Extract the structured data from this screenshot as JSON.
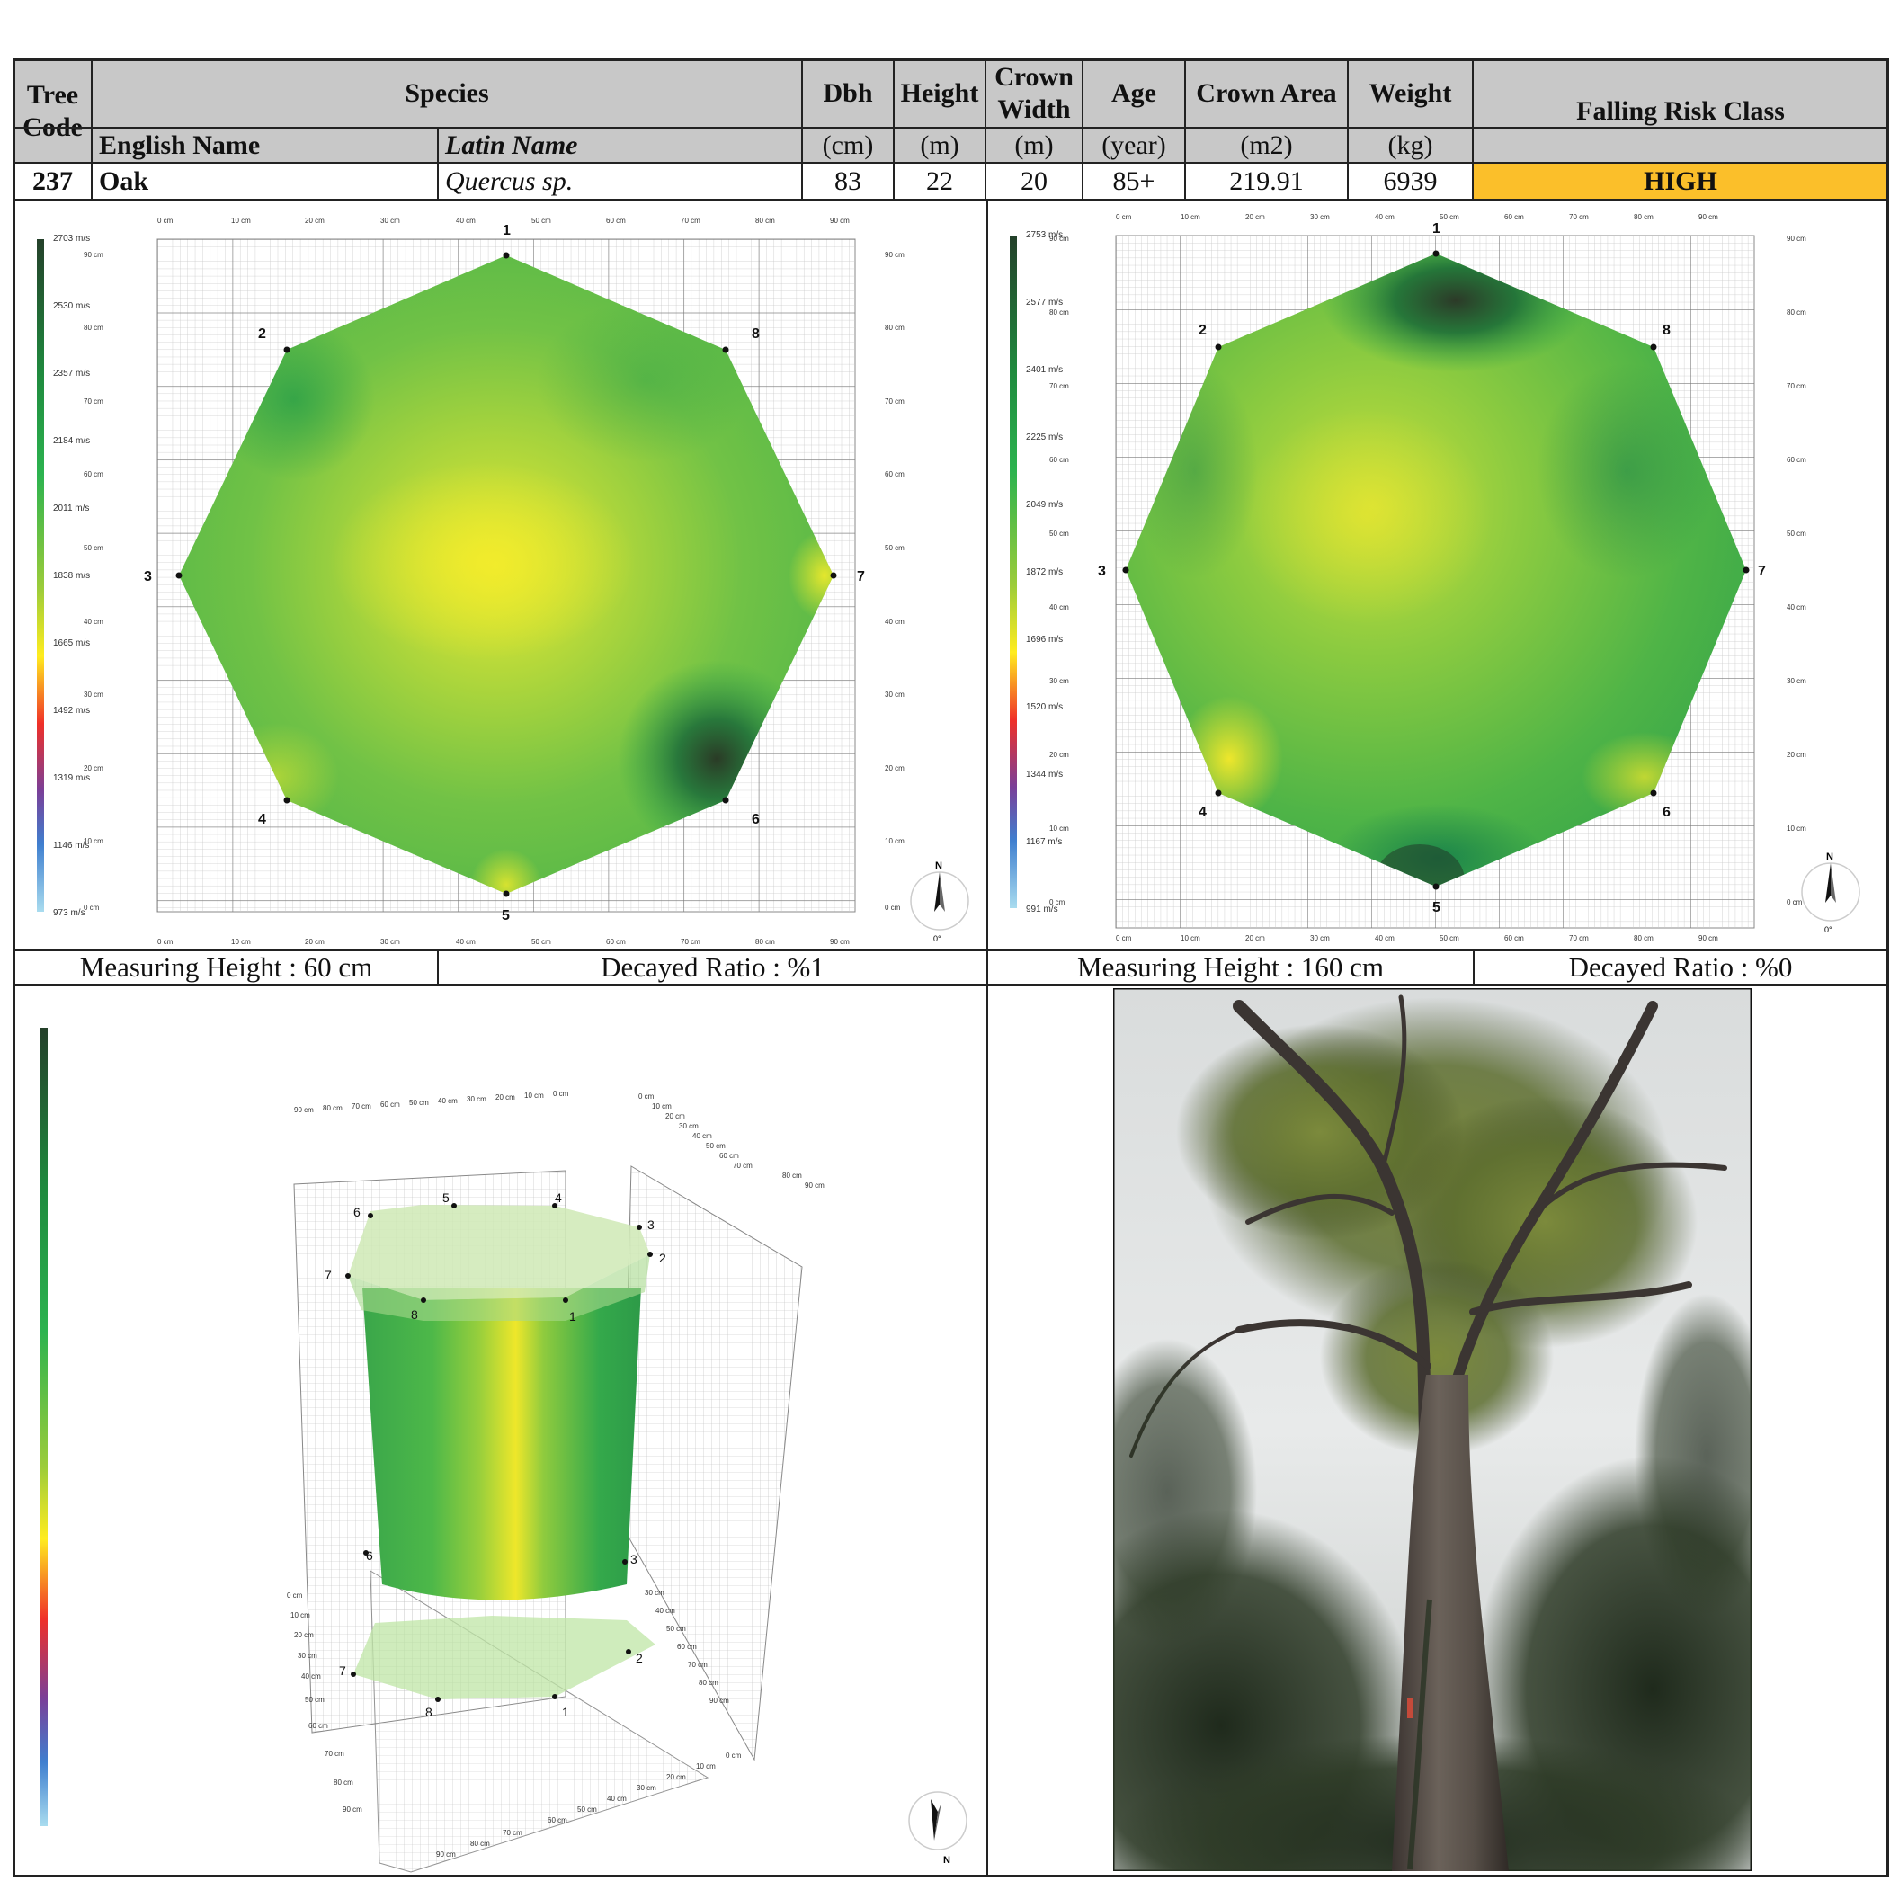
{
  "table": {
    "headers": {
      "tree_code": "Tree Code",
      "species": "Species",
      "english_name": "English Name",
      "latin_name": "Latin Name",
      "dbh": "Dbh",
      "height": "Height",
      "crown_width": "Crown Width",
      "age": "Age",
      "crown_area": "Crown Area",
      "weight": "Weight",
      "falling_risk": "Falling Risk Class"
    },
    "units": {
      "dbh": "(cm)",
      "height": "(m)",
      "crown_width": "(m)",
      "age": "(year)",
      "crown_area": "(m2)",
      "weight": "(kg)"
    },
    "row": {
      "tree_code": "237",
      "english_name": "Oak",
      "latin_name": "Quercus sp.",
      "dbh": "83",
      "height": "22",
      "crown_width": "20",
      "age": "85+",
      "crown_area": "219.91",
      "weight": "6939",
      "falling_risk": "HIGH"
    },
    "colors": {
      "header_bg": "#c8c8c8",
      "risk_bg": "#fbbf2a"
    }
  },
  "tomogram_left": {
    "measuring_height": "Measuring Height : 60 cm",
    "decayed_ratio": "Decayed Ratio : %1",
    "scale_labels": [
      "2703 m/s",
      "2530 m/s",
      "2357 m/s",
      "2184 m/s",
      "2011 m/s",
      "1838 m/s",
      "1665 m/s",
      "1492 m/s",
      "1319 m/s",
      "1146 m/s",
      "973 m/s"
    ],
    "sensors": [
      "1",
      "2",
      "3",
      "4",
      "5",
      "6",
      "7",
      "8"
    ]
  },
  "tomogram_right": {
    "measuring_height": "Measuring Height : 160 cm",
    "decayed_ratio": "Decayed Ratio : %0",
    "scale_labels": [
      "2753 m/s",
      "2577 m/s",
      "2401 m/s",
      "2225 m/s",
      "2049 m/s",
      "1872 m/s",
      "1696 m/s",
      "1520 m/s",
      "1344 m/s",
      "1167 m/s",
      "991 m/s"
    ],
    "sensors": [
      "1",
      "2",
      "3",
      "4",
      "5",
      "6",
      "7",
      "8"
    ]
  },
  "axis_ticks": [
    "0 cm",
    "10 cm",
    "20 cm",
    "30 cm",
    "40 cm",
    "50 cm",
    "60 cm",
    "70 cm",
    "80 cm",
    "90 cm"
  ],
  "compass": {
    "north": "N",
    "angle": "0°"
  },
  "model_3d": {
    "top_sensors": [
      "1",
      "2",
      "3",
      "4",
      "5",
      "6",
      "7",
      "8"
    ],
    "bottom_sensors": [
      "1",
      "2",
      "3",
      "6",
      "7",
      "8"
    ]
  },
  "photo": {
    "subject": "tree-photo"
  }
}
